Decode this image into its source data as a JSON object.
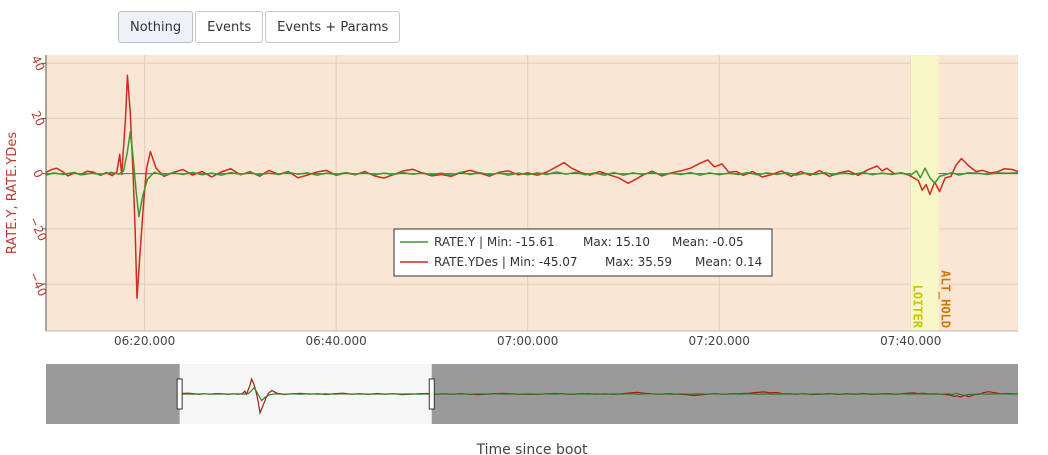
{
  "toolbar": {
    "buttons": [
      {
        "label": "Nothing",
        "active": true
      },
      {
        "label": "Events",
        "active": false
      },
      {
        "label": "Events + Params",
        "active": false
      }
    ]
  },
  "colors": {
    "plot_bg": "#f9e6d5",
    "rate_y": "#3a9a2a",
    "rate_ydes": "#d42a1f",
    "loiter_band": "#f7f7c8",
    "loiter_text": "#c8c800",
    "althold_text": "#c87a00",
    "navigator_bg": "#9a9a9a",
    "navigator_window": "#f6f6f6"
  },
  "chart_data": {
    "type": "line",
    "ylabel": "RATE.Y, RATE.YDes",
    "xlabel": "Time since boot",
    "x_unit": "seconds",
    "xlim": [
      369.7,
      471.2
    ],
    "ylim": [
      -57,
      43
    ],
    "xticks": [
      {
        "value": 380,
        "label": "06:20.000"
      },
      {
        "value": 400,
        "label": "06:40.000"
      },
      {
        "value": 420,
        "label": "07:00.000"
      },
      {
        "value": 440,
        "label": "07:20.000"
      },
      {
        "value": 460,
        "label": "07:40.000"
      }
    ],
    "yticks": [
      {
        "value": 40,
        "label": "40"
      },
      {
        "value": 20,
        "label": "20"
      },
      {
        "value": 0,
        "label": "0"
      },
      {
        "value": -20,
        "label": "−20"
      },
      {
        "value": -40,
        "label": "−40"
      }
    ],
    "series": [
      {
        "name": "RATE.Y",
        "stats": {
          "min": "-15.61",
          "max": "15.10",
          "mean": "-0.05"
        },
        "legend": {
          "name": "RATE.Y | Min: -15.61",
          "max": "Max: 15.10",
          "mean": "Mean: -0.05"
        },
        "points": [
          [
            369.7,
            -0.5
          ],
          [
            370.5,
            0.3
          ],
          [
            371.5,
            -0.3
          ],
          [
            372.5,
            0.4
          ],
          [
            373.5,
            -0.4
          ],
          [
            374.5,
            0.2
          ],
          [
            375.5,
            -0.3
          ],
          [
            376.5,
            0.5
          ],
          [
            377.3,
            -0.2
          ],
          [
            377.8,
            1.0
          ],
          [
            378.2,
            8.0
          ],
          [
            378.5,
            15.1
          ],
          [
            378.8,
            6.0
          ],
          [
            379.1,
            -6.0
          ],
          [
            379.4,
            -15.6
          ],
          [
            379.8,
            -8.0
          ],
          [
            380.3,
            -2.0
          ],
          [
            381.0,
            0.5
          ],
          [
            382.0,
            -0.6
          ],
          [
            383.0,
            0.4
          ],
          [
            384.0,
            -0.3
          ],
          [
            385.0,
            0.5
          ],
          [
            386.0,
            -0.4
          ],
          [
            387.0,
            0.2
          ],
          [
            388.0,
            -0.5
          ],
          [
            389.0,
            0.4
          ],
          [
            390.0,
            -0.2
          ],
          [
            391.0,
            0.3
          ],
          [
            392.0,
            -0.4
          ],
          [
            393.0,
            0.2
          ],
          [
            394.0,
            -0.3
          ],
          [
            395.0,
            0.5
          ],
          [
            396.0,
            -0.2
          ],
          [
            397.0,
            0.3
          ],
          [
            398.0,
            -0.5
          ],
          [
            399.0,
            0.2
          ],
          [
            400.0,
            -0.3
          ],
          [
            401.0,
            0.4
          ],
          [
            402.0,
            -0.2
          ],
          [
            403.0,
            0.3
          ],
          [
            404.0,
            -0.4
          ],
          [
            405.0,
            0.2
          ],
          [
            406.0,
            -0.3
          ],
          [
            407.0,
            0.4
          ],
          [
            408.0,
            -0.2
          ],
          [
            409.0,
            0.3
          ],
          [
            410.0,
            -0.4
          ],
          [
            411.0,
            0.2
          ],
          [
            412.0,
            -0.6
          ],
          [
            413.0,
            0.5
          ],
          [
            414.0,
            -0.3
          ],
          [
            415.0,
            0.4
          ],
          [
            416.0,
            -0.4
          ],
          [
            417.0,
            0.3
          ],
          [
            418.0,
            -0.5
          ],
          [
            419.0,
            0.2
          ],
          [
            420.0,
            -0.4
          ],
          [
            421.0,
            0.3
          ],
          [
            422.0,
            -0.3
          ],
          [
            423.0,
            0.6
          ],
          [
            424.0,
            -0.2
          ],
          [
            425.0,
            0.5
          ],
          [
            426.0,
            -0.4
          ],
          [
            427.0,
            0.3
          ],
          [
            428.0,
            -0.6
          ],
          [
            429.0,
            0.4
          ],
          [
            430.0,
            -0.5
          ],
          [
            431.0,
            0.3
          ],
          [
            432.0,
            -0.3
          ],
          [
            433.0,
            0.5
          ],
          [
            434.0,
            -0.4
          ],
          [
            435.0,
            0.2
          ],
          [
            436.0,
            -0.3
          ],
          [
            437.0,
            0.4
          ],
          [
            438.0,
            -0.5
          ],
          [
            439.0,
            0.3
          ],
          [
            440.0,
            -0.4
          ],
          [
            441.0,
            0.2
          ],
          [
            442.0,
            -0.3
          ],
          [
            443.0,
            0.4
          ],
          [
            444.0,
            -0.4
          ],
          [
            445.0,
            0.3
          ],
          [
            446.0,
            -0.3
          ],
          [
            447.0,
            0.4
          ],
          [
            448.0,
            -0.5
          ],
          [
            449.0,
            0.2
          ],
          [
            450.0,
            -0.3
          ],
          [
            451.0,
            0.4
          ],
          [
            452.0,
            -0.4
          ],
          [
            453.0,
            0.3
          ],
          [
            454.0,
            -0.3
          ],
          [
            455.0,
            0.5
          ],
          [
            456.0,
            -0.4
          ],
          [
            457.0,
            0.2
          ],
          [
            458.0,
            -0.3
          ],
          [
            459.0,
            0.3
          ],
          [
            460.0,
            -0.5
          ],
          [
            460.6,
            1.0
          ],
          [
            461.0,
            -1.5
          ],
          [
            461.5,
            2.0
          ],
          [
            462.0,
            -1.5
          ],
          [
            462.5,
            -3.5
          ],
          [
            463.0,
            -1.0
          ],
          [
            463.6,
            -0.4
          ],
          [
            464.3,
            0.4
          ],
          [
            465.0,
            -0.5
          ],
          [
            466.0,
            0.3
          ],
          [
            467.0,
            0.2
          ],
          [
            468.0,
            -0.3
          ],
          [
            469.0,
            0.3
          ],
          [
            470.0,
            0.2
          ],
          [
            471.2,
            0.3
          ]
        ]
      },
      {
        "name": "RATE.YDes",
        "stats": {
          "min": "-45.07",
          "max": "35.59",
          "mean": "0.14"
        },
        "legend": {
          "name": "RATE.YDes | Min: -45.07",
          "max": "Max: 35.59",
          "mean": "Mean: 0.14"
        },
        "points": [
          [
            369.7,
            0.5
          ],
          [
            370.3,
            1.5
          ],
          [
            370.8,
            2.0
          ],
          [
            371.4,
            0.8
          ],
          [
            372.0,
            -0.8
          ],
          [
            372.7,
            0.4
          ],
          [
            373.3,
            -0.4
          ],
          [
            374.0,
            0.9
          ],
          [
            374.6,
            0.6
          ],
          [
            375.4,
            -0.6
          ],
          [
            376.0,
            0.4
          ],
          [
            376.6,
            -0.7
          ],
          [
            377.1,
            0.6
          ],
          [
            377.4,
            7.0
          ],
          [
            377.6,
            -0.3
          ],
          [
            378.0,
            20.0
          ],
          [
            378.2,
            35.6
          ],
          [
            378.5,
            22.0
          ],
          [
            378.8,
            0.0
          ],
          [
            379.0,
            -20.0
          ],
          [
            379.2,
            -45.1
          ],
          [
            379.5,
            -30.0
          ],
          [
            379.9,
            -10.0
          ],
          [
            380.2,
            2.0
          ],
          [
            380.6,
            8.0
          ],
          [
            381.2,
            2.0
          ],
          [
            382.0,
            -1.0
          ],
          [
            383.0,
            0.5
          ],
          [
            384.0,
            1.5
          ],
          [
            385.0,
            -0.5
          ],
          [
            386.0,
            0.8
          ],
          [
            387.0,
            -1.2
          ],
          [
            388.0,
            0.6
          ],
          [
            389.0,
            1.8
          ],
          [
            390.0,
            -0.4
          ],
          [
            391.0,
            0.7
          ],
          [
            392.0,
            -0.9
          ],
          [
            393.0,
            1.2
          ],
          [
            394.0,
            -0.3
          ],
          [
            395.0,
            0.8
          ],
          [
            396.0,
            -1.5
          ],
          [
            397.0,
            -0.5
          ],
          [
            398.0,
            0.6
          ],
          [
            399.0,
            1.2
          ],
          [
            400.0,
            -0.6
          ],
          [
            401.0,
            0.3
          ],
          [
            402.0,
            -0.4
          ],
          [
            403.0,
            0.8
          ],
          [
            404.0,
            -0.8
          ],
          [
            405.0,
            -1.6
          ],
          [
            406.0,
            -0.3
          ],
          [
            407.0,
            1.0
          ],
          [
            408.0,
            1.6
          ],
          [
            409.0,
            0.3
          ],
          [
            410.0,
            -0.8
          ],
          [
            411.0,
            -0.3
          ],
          [
            412.0,
            -1.0
          ],
          [
            413.0,
            0.4
          ],
          [
            414.0,
            1.2
          ],
          [
            415.0,
            0.2
          ],
          [
            416.0,
            -0.9
          ],
          [
            417.0,
            0.5
          ],
          [
            418.0,
            1.0
          ],
          [
            419.0,
            -0.4
          ],
          [
            420.0,
            0.3
          ],
          [
            421.0,
            -0.6
          ],
          [
            422.0,
            0.6
          ],
          [
            423.0,
            2.5
          ],
          [
            423.8,
            4.0
          ],
          [
            424.6,
            2.0
          ],
          [
            425.5,
            0.5
          ],
          [
            426.5,
            -0.5
          ],
          [
            427.5,
            0.8
          ],
          [
            428.5,
            -0.4
          ],
          [
            429.5,
            -1.5
          ],
          [
            430.5,
            -3.5
          ],
          [
            431.3,
            -2.0
          ],
          [
            432.0,
            -0.6
          ],
          [
            433.0,
            0.9
          ],
          [
            434.0,
            -0.8
          ],
          [
            435.0,
            0.3
          ],
          [
            436.0,
            1.0
          ],
          [
            437.0,
            2.0
          ],
          [
            438.0,
            3.8
          ],
          [
            438.8,
            5.0
          ],
          [
            439.5,
            2.5
          ],
          [
            440.3,
            3.5
          ],
          [
            441.0,
            0.5
          ],
          [
            441.8,
            0.8
          ],
          [
            442.5,
            -0.6
          ],
          [
            443.5,
            0.8
          ],
          [
            444.5,
            -1.2
          ],
          [
            445.5,
            -0.3
          ],
          [
            446.5,
            1.0
          ],
          [
            447.5,
            -1.0
          ],
          [
            448.5,
            0.8
          ],
          [
            449.5,
            -0.6
          ],
          [
            450.5,
            1.1
          ],
          [
            451.5,
            -1.0
          ],
          [
            452.5,
            0.3
          ],
          [
            453.5,
            1.0
          ],
          [
            454.5,
            -0.6
          ],
          [
            455.5,
            1.4
          ],
          [
            456.5,
            2.8
          ],
          [
            457.0,
            1.0
          ],
          [
            457.5,
            2.0
          ],
          [
            458.3,
            0.0
          ],
          [
            459.0,
            0.3
          ],
          [
            459.8,
            -0.5
          ],
          [
            460.3,
            -1.5
          ],
          [
            460.8,
            -2.5
          ],
          [
            461.2,
            -6.0
          ],
          [
            461.6,
            -4.0
          ],
          [
            462.0,
            -7.5
          ],
          [
            462.5,
            -3.0
          ],
          [
            463.0,
            -6.5
          ],
          [
            463.6,
            -1.5
          ],
          [
            464.2,
            -1.0
          ],
          [
            464.7,
            3.0
          ],
          [
            465.3,
            5.5
          ],
          [
            466.0,
            3.0
          ],
          [
            466.8,
            0.8
          ],
          [
            467.5,
            1.2
          ],
          [
            468.3,
            0.3
          ],
          [
            469.0,
            0.6
          ],
          [
            469.8,
            1.8
          ],
          [
            470.6,
            1.5
          ],
          [
            471.2,
            0.8
          ]
        ]
      }
    ],
    "mode_bands": [
      {
        "label": "LOITER",
        "x_start": 460.0,
        "x_end": 462.9
      },
      {
        "label": "ALT_HOLD",
        "x_start": 462.9,
        "x_end": 471.2
      }
    ],
    "navigator": {
      "xlim": [
        353.9,
        468.8
      ],
      "window": [
        369.7,
        399.5
      ]
    }
  }
}
